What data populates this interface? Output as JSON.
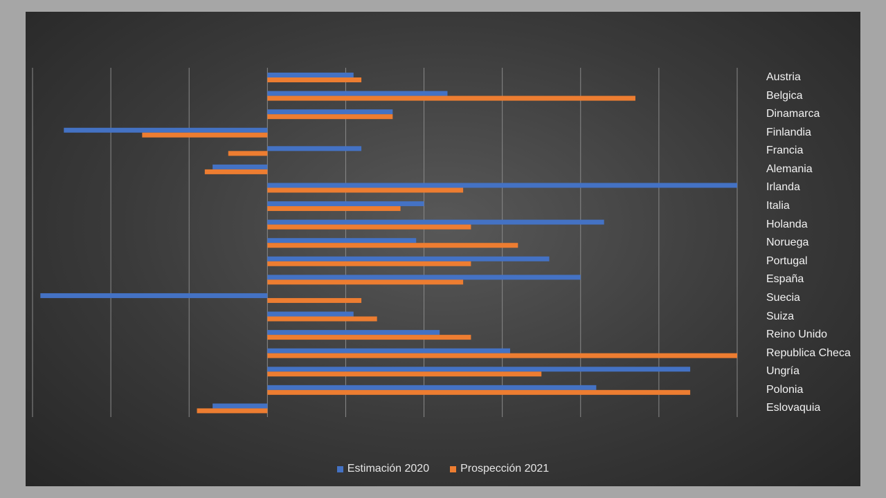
{
  "chart_data": {
    "type": "bar",
    "orientation": "horizontal",
    "categories": [
      "Austria",
      "Belgica",
      "Dinamarca",
      "Finlandia",
      "Francia",
      "Alemania",
      "Irlanda",
      "Italia",
      "Holanda",
      "Noruega",
      "Portugal",
      "España",
      "Suecia",
      "Suiza",
      "Reino Unido",
      "Republica Checa",
      "Ungría",
      "Polonia",
      "Eslovaquia"
    ],
    "series": [
      {
        "name": "Estimación 2020",
        "color": "#4472c4",
        "values": [
          1.1,
          2.3,
          1.6,
          -2.6,
          1.2,
          -0.7,
          6.0,
          2.0,
          4.3,
          1.9,
          3.6,
          4.0,
          -2.9,
          1.1,
          2.2,
          3.1,
          5.4,
          4.2,
          -0.7
        ]
      },
      {
        "name": "Prospección 2021",
        "color": "#ed7d31",
        "values": [
          1.2,
          4.7,
          1.6,
          -1.6,
          -0.5,
          -0.8,
          2.5,
          1.7,
          2.6,
          3.2,
          2.6,
          2.5,
          1.2,
          1.4,
          2.6,
          6.0,
          3.5,
          5.4,
          -0.9
        ]
      }
    ],
    "xlim": [
      -3,
      6
    ],
    "grid": true,
    "legend_position": "bottom",
    "title": "",
    "xlabel": "",
    "ylabel": ""
  }
}
